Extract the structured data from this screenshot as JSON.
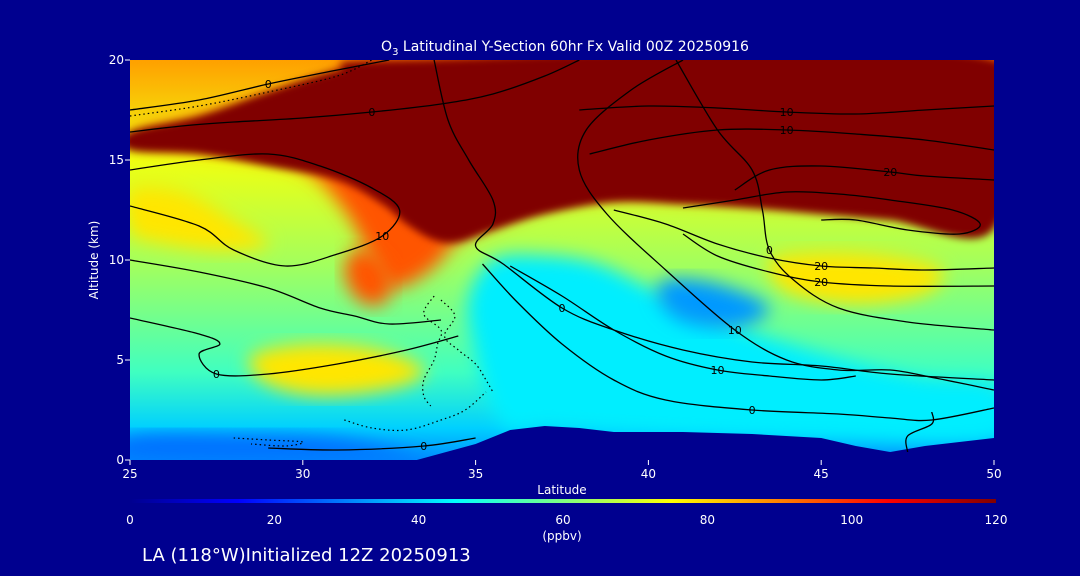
{
  "chart_data": {
    "type": "heatmap",
    "title_prefix": "O",
    "title_sub": "3",
    "title_rest": " Latitudinal Y-Section 60hr  Fx Valid 00Z 20250916",
    "xlabel": "Latitude",
    "ylabel": "Altitude (km)",
    "xlim": [
      25,
      50
    ],
    "ylim": [
      0,
      20
    ],
    "x_ticks": [
      25,
      30,
      35,
      40,
      45,
      50
    ],
    "y_ticks": [
      0,
      5,
      10,
      15,
      20
    ],
    "colorbar": {
      "ticks": [
        0,
        20,
        40,
        60,
        80,
        100,
        120
      ],
      "range": [
        0,
        120
      ],
      "unit_label": "(ppbv)",
      "colors": [
        "#00008f",
        "#0000ff",
        "#0080ff",
        "#00ffff",
        "#80ff80",
        "#ffff00",
        "#ff8000",
        "#ff0000",
        "#800000"
      ]
    },
    "footer": "LA (118°W)Initialized 12Z 20250913",
    "terrain_km": [
      [
        33.3,
        0
      ],
      [
        35,
        0.8
      ],
      [
        36,
        1.5
      ],
      [
        37,
        1.7
      ],
      [
        38,
        1.6
      ],
      [
        39,
        1.4
      ],
      [
        41,
        1.4
      ],
      [
        43,
        1.3
      ],
      [
        45,
        1.1
      ],
      [
        46,
        0.7
      ],
      [
        47,
        0.4
      ],
      [
        48,
        0.7
      ],
      [
        49,
        0.9
      ],
      [
        50,
        1.1
      ]
    ],
    "regions": [
      {
        "value": 95,
        "points": [
          [
            25,
            16.2
          ],
          [
            27,
            17
          ],
          [
            29,
            18
          ],
          [
            31,
            19
          ],
          [
            33,
            20
          ],
          [
            50,
            20
          ],
          [
            50,
            12.6
          ],
          [
            46,
            12.8
          ],
          [
            43,
            13
          ],
          [
            41,
            13.2
          ],
          [
            39,
            13.3
          ],
          [
            37,
            12.8
          ],
          [
            35.5,
            11.8
          ],
          [
            34.5,
            11
          ],
          [
            33.7,
            9.5
          ],
          [
            32.6,
            8.6
          ],
          [
            32,
            10
          ],
          [
            31.2,
            12.5
          ],
          [
            30,
            14.6
          ],
          [
            28,
            15.4
          ],
          [
            26,
            15.8
          ]
        ]
      },
      {
        "value": 125,
        "points": [
          [
            25,
            16.4
          ],
          [
            27,
            17.2
          ],
          [
            29,
            18.4
          ],
          [
            31,
            19.5
          ],
          [
            33,
            20
          ],
          [
            50,
            20
          ],
          [
            50,
            11.6
          ],
          [
            47,
            12
          ],
          [
            45,
            12.3
          ],
          [
            43,
            12.6
          ],
          [
            41,
            12.8
          ],
          [
            39,
            12.9
          ],
          [
            37,
            12.3
          ],
          [
            35.5,
            11.5
          ],
          [
            34.5,
            10.9
          ],
          [
            33.8,
            11
          ],
          [
            33,
            11.8
          ],
          [
            32.3,
            12.8
          ],
          [
            31,
            14
          ],
          [
            29,
            14.7
          ],
          [
            27,
            15.3
          ],
          [
            25,
            15.5
          ]
        ]
      },
      {
        "value": 43,
        "points": [
          [
            35.5,
            10
          ],
          [
            37,
            10.2
          ],
          [
            38.5,
            9.8
          ],
          [
            40,
            8.6
          ],
          [
            42,
            7
          ],
          [
            44,
            5.8
          ],
          [
            46,
            4.8
          ],
          [
            48,
            4
          ],
          [
            50,
            3.6
          ],
          [
            50,
            1.1
          ],
          [
            45,
            1.1
          ],
          [
            40,
            1.4
          ],
          [
            37,
            1.7
          ],
          [
            36,
            1.5
          ],
          [
            35.4,
            3
          ],
          [
            35,
            5.5
          ],
          [
            34.8,
            8
          ]
        ]
      },
      {
        "value": 78,
        "points": [
          [
            28.5,
            5.2
          ],
          [
            30,
            5.8
          ],
          [
            32,
            5.6
          ],
          [
            33.5,
            4.6
          ],
          [
            33,
            3.8
          ],
          [
            31.5,
            3.3
          ],
          [
            30,
            3.3
          ],
          [
            28.8,
            4
          ]
        ]
      },
      {
        "value": 78,
        "points": [
          [
            43.5,
            10
          ],
          [
            45,
            10.4
          ],
          [
            47,
            10.2
          ],
          [
            48.5,
            9.5
          ],
          [
            48,
            8.3
          ],
          [
            46,
            7.8
          ],
          [
            44,
            8.4
          ]
        ]
      },
      {
        "value": 78,
        "points": [
          [
            25,
            13.5
          ],
          [
            26.5,
            13.4
          ],
          [
            28,
            12
          ],
          [
            29,
            10.8
          ],
          [
            27.5,
            10.5
          ],
          [
            25.5,
            11
          ],
          [
            25,
            11.5
          ]
        ]
      },
      {
        "value": 95,
        "points": [
          [
            31.5,
            10.5
          ],
          [
            32.2,
            10.2
          ],
          [
            32.6,
            9
          ],
          [
            32.3,
            7.8
          ],
          [
            31.6,
            8
          ],
          [
            31.2,
            9.4
          ]
        ]
      },
      {
        "value": 28,
        "points": [
          [
            25,
            1.2
          ],
          [
            28,
            1.3
          ],
          [
            31,
            1.1
          ],
          [
            33.3,
            0.3
          ],
          [
            33.3,
            0
          ],
          [
            25,
            0
          ]
        ]
      },
      {
        "value": 33,
        "points": [
          [
            40.5,
            9
          ],
          [
            42,
            8.8
          ],
          [
            43.5,
            7.6
          ],
          [
            42.5,
            6.6
          ],
          [
            41,
            6.9
          ],
          [
            40.3,
            8
          ]
        ]
      }
    ],
    "contours": [
      {
        "label": "0",
        "points": [
          [
            25,
            17.5
          ],
          [
            27,
            18
          ],
          [
            29,
            18.8
          ],
          [
            31,
            19.5
          ],
          [
            32.5,
            20
          ]
        ]
      },
      {
        "label": "0",
        "points": [
          [
            25,
            16.4
          ],
          [
            26.5,
            16.7
          ],
          [
            28,
            16.9
          ],
          [
            30,
            17.1
          ],
          [
            32,
            17.4
          ],
          [
            34,
            17.8
          ],
          [
            35.5,
            18.3
          ],
          [
            37,
            19.2
          ],
          [
            38,
            20
          ]
        ]
      },
      {
        "label": "10",
        "points": [
          [
            25,
            14.5
          ],
          [
            27,
            15
          ],
          [
            29,
            15.3
          ],
          [
            30.5,
            14.7
          ],
          [
            32,
            13.6
          ],
          [
            32.8,
            12.5
          ],
          [
            32.3,
            11.2
          ],
          [
            31,
            10.3
          ],
          [
            29.5,
            9.7
          ],
          [
            28,
            10.5
          ],
          [
            27,
            11.7
          ],
          [
            25,
            12.7
          ]
        ]
      },
      {
        "label": "",
        "points": [
          [
            25,
            10
          ],
          [
            27,
            9.4
          ],
          [
            29,
            8.6
          ],
          [
            30.5,
            7.6
          ],
          [
            31.5,
            7.2
          ],
          [
            32.5,
            6.8
          ],
          [
            34,
            7
          ]
        ]
      },
      {
        "label": "0",
        "points": [
          [
            25,
            7.1
          ],
          [
            27,
            6.3
          ],
          [
            27.6,
            5.8
          ],
          [
            27,
            5.3
          ],
          [
            27.5,
            4.3
          ],
          [
            29,
            4.3
          ],
          [
            31,
            4.8
          ],
          [
            33,
            5.5
          ],
          [
            34.5,
            6.2
          ]
        ]
      },
      {
        "label": "0",
        "points": [
          [
            33.8,
            20
          ],
          [
            34.2,
            17
          ],
          [
            34.8,
            15
          ],
          [
            35.5,
            13
          ],
          [
            35.5,
            11.8
          ],
          [
            35,
            10.7
          ],
          [
            35.8,
            9.8
          ],
          [
            37.5,
            7.6
          ],
          [
            39,
            6.5
          ],
          [
            41,
            5.5
          ],
          [
            43,
            4.9
          ],
          [
            45,
            4.7
          ],
          [
            47,
            4.3
          ],
          [
            50,
            4
          ]
        ]
      },
      {
        "label": "10",
        "points": [
          [
            41,
            20
          ],
          [
            39.5,
            18.5
          ],
          [
            38.2,
            16.5
          ],
          [
            38,
            14.5
          ],
          [
            38.8,
            12.3
          ],
          [
            40.5,
            9.5
          ],
          [
            42.5,
            6.5
          ],
          [
            44,
            5
          ],
          [
            45.5,
            4.5
          ],
          [
            47,
            4.5
          ],
          [
            48.3,
            4.1
          ],
          [
            50,
            3.5
          ]
        ]
      },
      {
        "label": "0",
        "points": [
          [
            40.8,
            20
          ],
          [
            42,
            16.5
          ],
          [
            43,
            14.5
          ],
          [
            43.3,
            12.5
          ],
          [
            43.5,
            10.5
          ],
          [
            44.2,
            9
          ],
          [
            45.5,
            7.6
          ],
          [
            47.5,
            6.9
          ],
          [
            50,
            6.5
          ]
        ]
      },
      {
        "label": "10",
        "points": [
          [
            38,
            17.5
          ],
          [
            40,
            17.7
          ],
          [
            42,
            17.6
          ],
          [
            44,
            17.4
          ],
          [
            46,
            17.3
          ],
          [
            48,
            17.5
          ],
          [
            50,
            17.7
          ]
        ]
      },
      {
        "label": "10",
        "points": [
          [
            38.3,
            15.3
          ],
          [
            40,
            16
          ],
          [
            42,
            16.5
          ],
          [
            44,
            16.5
          ],
          [
            46,
            16.3
          ],
          [
            48,
            16
          ],
          [
            50,
            15.5
          ]
        ]
      },
      {
        "label": "20",
        "points": [
          [
            42.5,
            13.5
          ],
          [
            43.5,
            14.5
          ],
          [
            45,
            14.7
          ],
          [
            47,
            14.4
          ],
          [
            48,
            14.2
          ],
          [
            50,
            14
          ]
        ]
      },
      {
        "label": "",
        "points": [
          [
            41,
            12.6
          ],
          [
            42.5,
            13
          ],
          [
            44,
            13.4
          ],
          [
            45.5,
            13.3
          ],
          [
            47,
            13
          ],
          [
            48.8,
            12.5
          ],
          [
            49.6,
            11.8
          ],
          [
            49,
            11.3
          ],
          [
            47.5,
            11.5
          ],
          [
            46,
            12
          ],
          [
            45,
            12
          ]
        ]
      },
      {
        "label": "20",
        "points": [
          [
            39,
            12.5
          ],
          [
            40.5,
            11.8
          ],
          [
            42,
            10.8
          ],
          [
            43.5,
            10.1
          ],
          [
            45,
            9.7
          ],
          [
            46.5,
            9.6
          ],
          [
            48,
            9.5
          ],
          [
            50,
            9.6
          ]
        ]
      },
      {
        "label": "20",
        "points": [
          [
            41,
            11.3
          ],
          [
            42,
            10.2
          ],
          [
            43.5,
            9.4
          ],
          [
            45,
            8.9
          ],
          [
            47,
            8.7
          ],
          [
            50,
            8.7
          ]
        ]
      },
      {
        "label": "10",
        "points": [
          [
            36,
            9.7
          ],
          [
            37.5,
            8.2
          ],
          [
            39,
            6.5
          ],
          [
            40.5,
            5.2
          ],
          [
            42,
            4.5
          ],
          [
            43.5,
            4.2
          ],
          [
            45,
            4
          ],
          [
            46,
            4.2
          ]
        ]
      },
      {
        "label": "0",
        "points": [
          [
            35.2,
            9.8
          ],
          [
            36.2,
            7.9
          ],
          [
            37.5,
            5.8
          ],
          [
            39,
            4
          ],
          [
            40.5,
            3
          ],
          [
            43,
            2.5
          ],
          [
            45.5,
            2.3
          ],
          [
            47,
            2.1
          ],
          [
            48.2,
            2
          ],
          [
            50,
            2.6
          ]
        ]
      },
      {
        "label": "",
        "points": [
          [
            47.5,
            0.4
          ],
          [
            47.5,
            1.2
          ],
          [
            48.2,
            1.8
          ],
          [
            48.2,
            2.4
          ]
        ]
      },
      {
        "label": "0",
        "points": [
          [
            29,
            0.6
          ],
          [
            31,
            0.5
          ],
          [
            33.5,
            0.7
          ],
          [
            35,
            1.1
          ]
        ]
      }
    ],
    "dotted_contours": [
      [
        [
          25,
          17.2
        ],
        [
          27,
          17.7
        ],
        [
          29,
          18.4
        ],
        [
          31,
          19.2
        ],
        [
          32,
          20
        ]
      ],
      [
        [
          33.8,
          8.2
        ],
        [
          33.5,
          7.3
        ],
        [
          34,
          6.5
        ],
        [
          33.9,
          5.8
        ],
        [
          33.8,
          5
        ],
        [
          33.5,
          4
        ],
        [
          33.5,
          3.2
        ],
        [
          33.7,
          2.7
        ]
      ],
      [
        [
          34,
          8
        ],
        [
          34.4,
          7.2
        ],
        [
          34.1,
          6.2
        ],
        [
          34.5,
          5.5
        ],
        [
          35,
          4.8
        ],
        [
          35.3,
          4
        ],
        [
          35.5,
          3.4
        ]
      ],
      [
        [
          31.2,
          2
        ],
        [
          32,
          1.6
        ],
        [
          33,
          1.5
        ],
        [
          34,
          2
        ],
        [
          34.7,
          2.5
        ],
        [
          35.3,
          3.4
        ]
      ],
      [
        [
          28,
          1.1
        ],
        [
          29,
          1
        ],
        [
          30,
          0.9
        ],
        [
          29.5,
          0.7
        ],
        [
          28.5,
          0.8
        ]
      ]
    ]
  }
}
